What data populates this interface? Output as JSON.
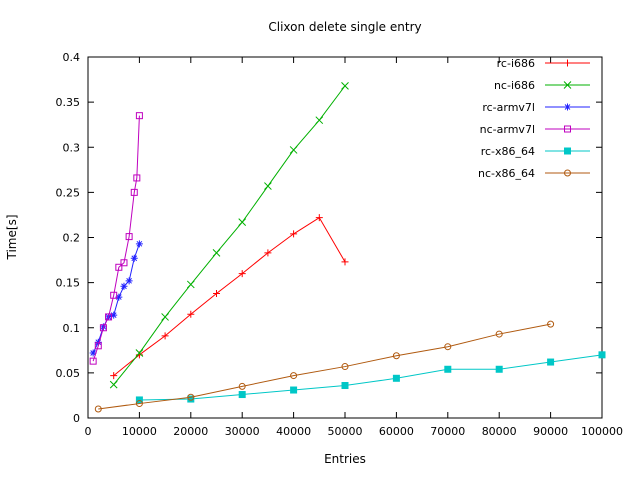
{
  "chart_data": {
    "type": "line",
    "title": "Clixon delete single entry",
    "xlabel": "Entries",
    "ylabel": "Time[s]",
    "xlim": [
      0,
      100000
    ],
    "ylim": [
      0,
      0.4
    ],
    "xticks": [
      0,
      10000,
      20000,
      30000,
      40000,
      50000,
      60000,
      70000,
      80000,
      90000,
      100000
    ],
    "xtick_labels": [
      "0",
      "10000",
      "20000",
      "30000",
      "40000",
      "50000",
      "60000",
      "70000",
      "80000",
      "90000",
      "100000"
    ],
    "yticks": [
      0,
      0.05,
      0.1,
      0.15,
      0.2,
      0.25,
      0.3,
      0.35,
      0.4
    ],
    "ytick_labels": [
      "0",
      "0.05",
      "0.1",
      "0.15",
      "0.2",
      "0.25",
      "0.3",
      "0.35",
      "0.4"
    ],
    "grid": false,
    "background": "#ffffff",
    "text_color": "#000000",
    "border_color": "#000000",
    "legend": {
      "position": "top-right-inside",
      "border": false
    },
    "series": [
      {
        "name": "rc-i686",
        "color": "#ff0000",
        "marker": "plus",
        "points": [
          [
            5000,
            0.047
          ],
          [
            10000,
            0.07
          ],
          [
            15000,
            0.091
          ],
          [
            20000,
            0.115
          ],
          [
            25000,
            0.138
          ],
          [
            30000,
            0.16
          ],
          [
            35000,
            0.183
          ],
          [
            40000,
            0.204
          ],
          [
            45000,
            0.222
          ],
          [
            50000,
            0.173
          ]
        ]
      },
      {
        "name": "nc-i686",
        "color": "#00b000",
        "marker": "cross",
        "points": [
          [
            5000,
            0.037
          ],
          [
            10000,
            0.072
          ],
          [
            15000,
            0.112
          ],
          [
            20000,
            0.148
          ],
          [
            25000,
            0.183
          ],
          [
            30000,
            0.217
          ],
          [
            35000,
            0.257
          ],
          [
            40000,
            0.297
          ],
          [
            45000,
            0.33
          ],
          [
            50000,
            0.368
          ]
        ]
      },
      {
        "name": "rc-armv7l",
        "color": "#2222ff",
        "marker": "asterisk",
        "points": [
          [
            1000,
            0.072
          ],
          [
            2000,
            0.084
          ],
          [
            3000,
            0.101
          ],
          [
            4000,
            0.112
          ],
          [
            5000,
            0.114
          ],
          [
            6000,
            0.134
          ],
          [
            7000,
            0.146
          ],
          [
            8000,
            0.152
          ],
          [
            9000,
            0.177
          ],
          [
            10000,
            0.193
          ]
        ]
      },
      {
        "name": "nc-armv7l",
        "color": "#bf00bf",
        "marker": "square-open",
        "points": [
          [
            1000,
            0.063
          ],
          [
            2000,
            0.08
          ],
          [
            3000,
            0.1
          ],
          [
            4000,
            0.112
          ],
          [
            5000,
            0.136
          ],
          [
            6000,
            0.167
          ],
          [
            7000,
            0.172
          ],
          [
            8000,
            0.201
          ],
          [
            9000,
            0.25
          ],
          [
            9500,
            0.266
          ],
          [
            10000,
            0.335
          ]
        ]
      },
      {
        "name": "rc-x86_64",
        "color": "#00c7c7",
        "marker": "square-filled",
        "points": [
          [
            10000,
            0.02
          ],
          [
            20000,
            0.021
          ],
          [
            30000,
            0.026
          ],
          [
            40000,
            0.031
          ],
          [
            50000,
            0.036
          ],
          [
            60000,
            0.044
          ],
          [
            70000,
            0.054
          ],
          [
            80000,
            0.054
          ],
          [
            90000,
            0.062
          ],
          [
            100000,
            0.07
          ]
        ]
      },
      {
        "name": "nc-x86_64",
        "color": "#b05a10",
        "marker": "circle-open",
        "points": [
          [
            2000,
            0.01
          ],
          [
            10000,
            0.016
          ],
          [
            20000,
            0.023
          ],
          [
            30000,
            0.035
          ],
          [
            40000,
            0.047
          ],
          [
            50000,
            0.057
          ],
          [
            60000,
            0.069
          ],
          [
            70000,
            0.079
          ],
          [
            80000,
            0.093
          ],
          [
            90000,
            0.104
          ]
        ]
      }
    ]
  }
}
